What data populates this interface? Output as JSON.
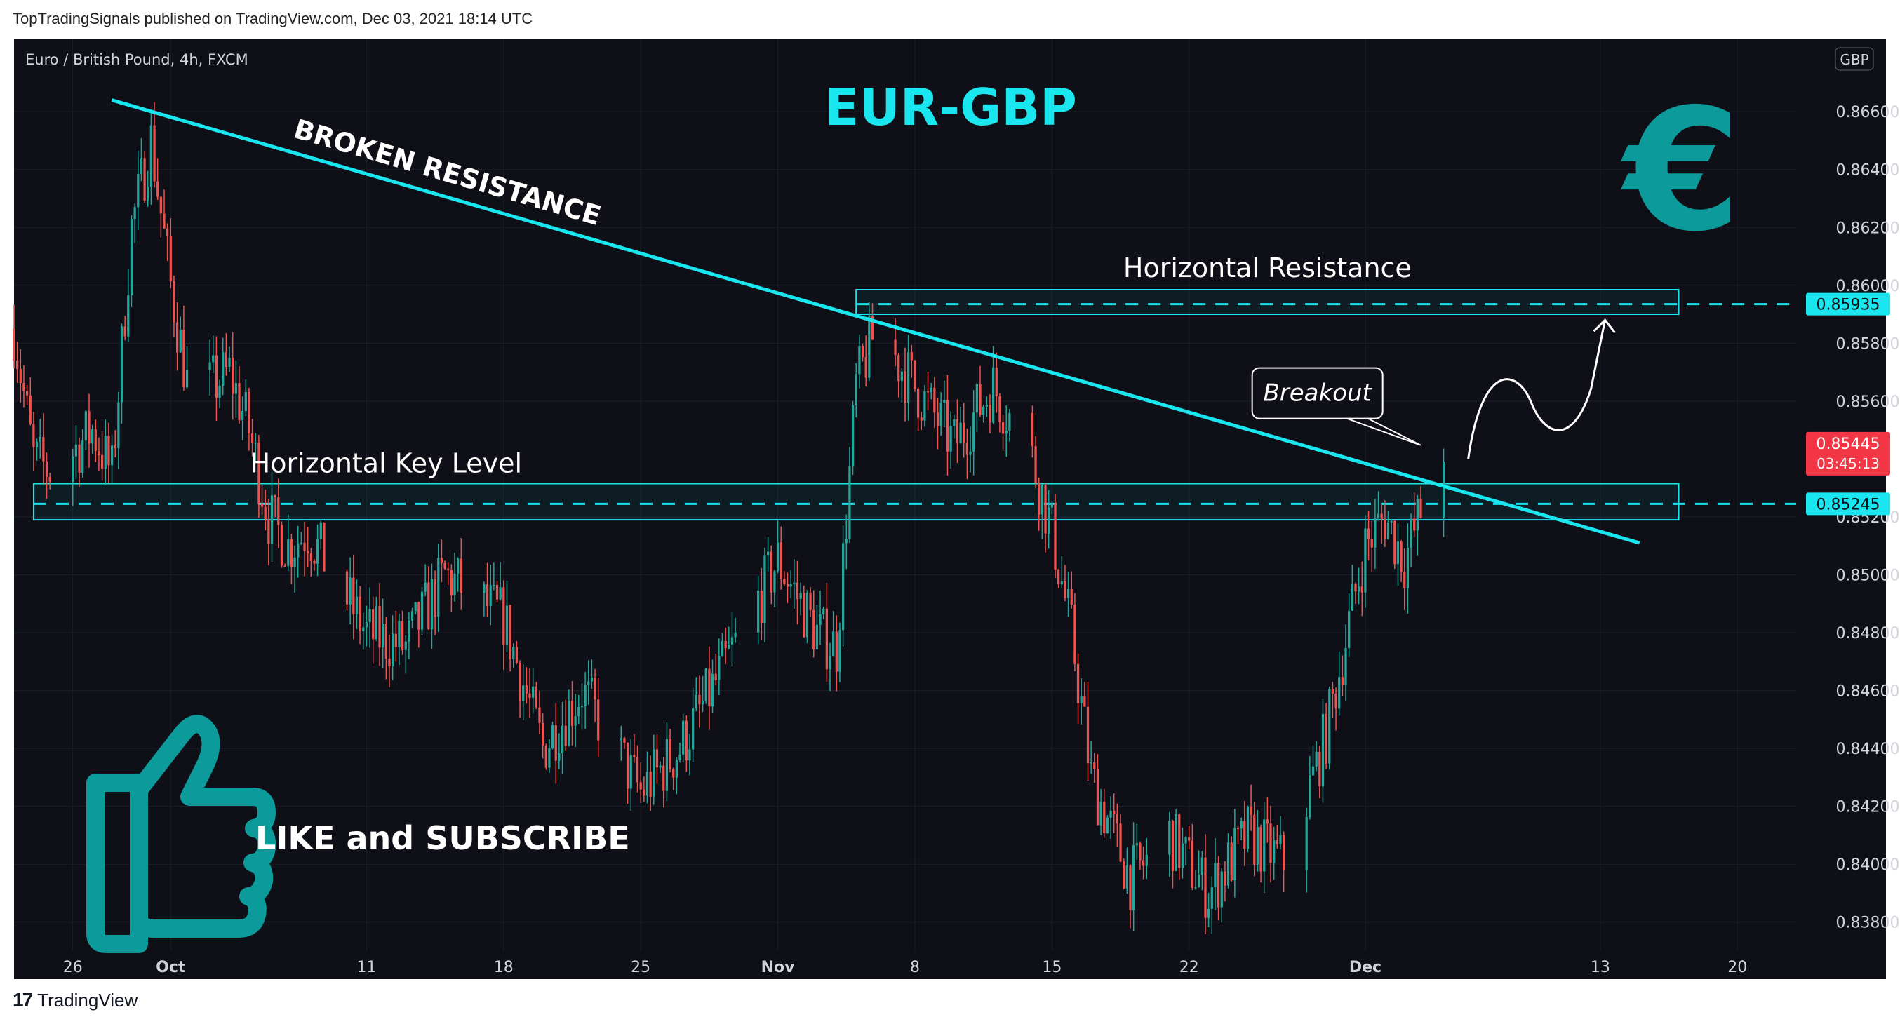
{
  "header": {
    "published_by": "TopTradingSignals published on TradingView.com, Dec 03, 2021 18:14 UTC"
  },
  "footer": {
    "brand": "TradingView",
    "brand_icon": "tradingview-logo-icon"
  },
  "chart_data": {
    "type": "candlestick",
    "symbol_line": "Euro / British Pound, 4h, FXCM",
    "title": "EUR-GBP",
    "currency": "GBP",
    "x_tick_labels": [
      "26",
      "Oct",
      "11",
      "18",
      "25",
      "Nov",
      "8",
      "15",
      "22",
      "Dec",
      "13",
      "20"
    ],
    "y_tick_labels": [
      "0.86600",
      "0.86400",
      "0.86200",
      "0.86000",
      "0.85800",
      "0.85600",
      "0.85200",
      "0.85000",
      "0.84800",
      "0.84600",
      "0.84400",
      "0.84200",
      "0.84000",
      "0.83800"
    ],
    "ylim": [
      0.837,
      0.8685
    ],
    "colors": {
      "background": "#0e0f17",
      "up": "#26a69a",
      "down": "#ef5350",
      "accent": "#19e6ee",
      "grid": "#1c1f2a"
    },
    "price_path": [
      [
        "2021-09-23",
        0.8585
      ],
      [
        "2021-09-24",
        0.854
      ],
      [
        "2021-09-25",
        0.8535
      ],
      [
        "2021-09-27",
        0.855
      ],
      [
        "2021-09-28",
        0.8535
      ],
      [
        "2021-09-29",
        0.862
      ],
      [
        "2021-09-30",
        0.865
      ],
      [
        "2021-10-01",
        0.86
      ],
      [
        "2021-10-02",
        0.856
      ],
      [
        "2021-10-04",
        0.857
      ],
      [
        "2021-10-05",
        0.855
      ],
      [
        "2021-10-06",
        0.852
      ],
      [
        "2021-10-07",
        0.851
      ],
      [
        "2021-10-08",
        0.8515
      ],
      [
        "2021-10-11",
        0.848
      ],
      [
        "2021-10-13",
        0.8475
      ],
      [
        "2021-10-15",
        0.85
      ],
      [
        "2021-10-18",
        0.8485
      ],
      [
        "2021-10-20",
        0.844
      ],
      [
        "2021-10-22",
        0.846
      ],
      [
        "2021-10-25",
        0.8425
      ],
      [
        "2021-10-27",
        0.844
      ],
      [
        "2021-10-29",
        0.8465
      ],
      [
        "2021-11-01",
        0.8505
      ],
      [
        "2021-11-03",
        0.848
      ],
      [
        "2021-11-04",
        0.8475
      ],
      [
        "2021-11-05",
        0.8565
      ],
      [
        "2021-11-06",
        0.8585
      ],
      [
        "2021-11-08",
        0.8565
      ],
      [
        "2021-11-10",
        0.8545
      ],
      [
        "2021-11-12",
        0.8565
      ],
      [
        "2021-11-14",
        0.854
      ],
      [
        "2021-11-15",
        0.8515
      ],
      [
        "2021-11-16",
        0.848
      ],
      [
        "2021-11-17",
        0.843
      ],
      [
        "2021-11-19",
        0.8395
      ],
      [
        "2021-11-21",
        0.841
      ],
      [
        "2021-11-23",
        0.839
      ],
      [
        "2021-11-25",
        0.841
      ],
      [
        "2021-11-27",
        0.84
      ],
      [
        "2021-11-29",
        0.8445
      ],
      [
        "2021-12-01",
        0.851
      ],
      [
        "2021-12-02",
        0.852
      ],
      [
        "2021-12-03",
        0.8505
      ],
      [
        "2021-12-04",
        0.8525
      ],
      [
        "2021-12-05",
        0.8545
      ]
    ],
    "x_range": [
      "2021-09-23",
      "2021-12-23"
    ],
    "lines": {
      "broken_resistance": {
        "from": [
          "2021-09-28",
          0.8664
        ],
        "to": [
          "2021-12-15",
          0.8511
        ]
      },
      "horizontal_resistance": {
        "value": 0.85935,
        "zone": [
          0.859,
          0.85985
        ],
        "x_start": "2021-11-05",
        "x_end": "2021-12-17"
      },
      "horizontal_key_level": {
        "value": 0.85245,
        "zone": [
          0.8519,
          0.85315
        ],
        "x_start": "2021-09-24",
        "x_end": "2021-12-17"
      }
    },
    "price_tags": [
      {
        "label": "0.85935",
        "value": 0.85935,
        "kind": "level"
      },
      {
        "label": "0.85245",
        "value": 0.85245,
        "kind": "level"
      },
      {
        "label": "0.85445",
        "sub": "03:45:13",
        "value": 0.85445,
        "kind": "last"
      }
    ],
    "annotations": {
      "broken_resistance": "BROKEN RESISTANCE",
      "horizontal_resistance": "Horizontal Resistance",
      "horizontal_key_level": "Horizontal Key Level",
      "breakout": "Breakout",
      "cta": "LIKE and SUBSCRIBE"
    },
    "icons": [
      "euro-sign-icon",
      "thumbs-up-icon"
    ]
  }
}
